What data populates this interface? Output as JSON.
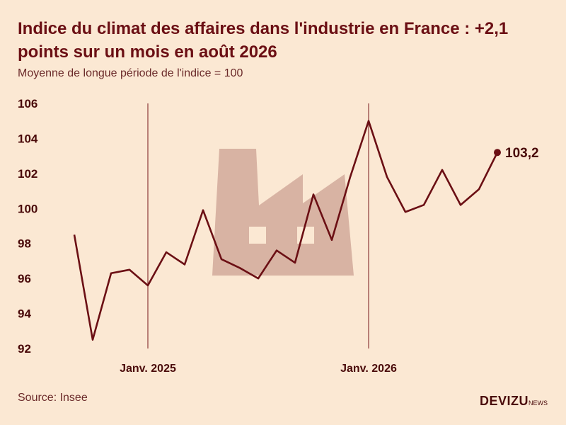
{
  "title": "Indice du climat des affaires dans l'industrie en France : +2,1 points sur un mois en août 2026",
  "subtitle": "Moyenne de longue période de l'indice = 100",
  "source": "Source: Insee",
  "brand": {
    "name": "DEVIZU",
    "suffix": "NEWS"
  },
  "colors": {
    "background": "#fbe8d3",
    "line": "#6b0f14",
    "factory": "#d8b3a3"
  },
  "chart_data": {
    "type": "line",
    "title": "Indice du climat des affaires dans l'industrie en France : +2,1 points sur un mois en août 2026",
    "subtitle": "Moyenne de longue période de l'indice = 100",
    "ylim": [
      92,
      106
    ],
    "yticks": [
      92,
      94,
      96,
      98,
      100,
      102,
      104,
      106
    ],
    "ytick_labels": [
      "92",
      "94",
      "96",
      "98",
      "100",
      "102",
      "104",
      "106"
    ],
    "x": [
      "2024-09",
      "2024-10",
      "2024-11",
      "2024-12",
      "2025-01",
      "2025-02",
      "2025-03",
      "2025-04",
      "2025-05",
      "2025-06",
      "2025-07",
      "2025-08",
      "2025-09",
      "2025-10",
      "2025-11",
      "2025-12",
      "2026-01",
      "2026-02",
      "2026-03",
      "2026-04",
      "2026-05",
      "2026-06",
      "2026-07",
      "2026-08"
    ],
    "values": [
      98.5,
      92.5,
      96.3,
      96.5,
      95.6,
      97.5,
      96.8,
      99.9,
      97.1,
      96.6,
      96.0,
      97.6,
      96.9,
      100.8,
      98.2,
      101.8,
      105.0,
      101.8,
      99.8,
      100.2,
      102.2,
      100.2,
      101.1,
      103.2
    ],
    "reference_lines": [
      {
        "x": "2025-01",
        "label": "Janv. 2025"
      },
      {
        "x": "2026-01",
        "label": "Janv. 2026"
      }
    ],
    "last_value_label": "103,2",
    "grid": false,
    "legend": "none",
    "background_icon": "factory-icon"
  }
}
